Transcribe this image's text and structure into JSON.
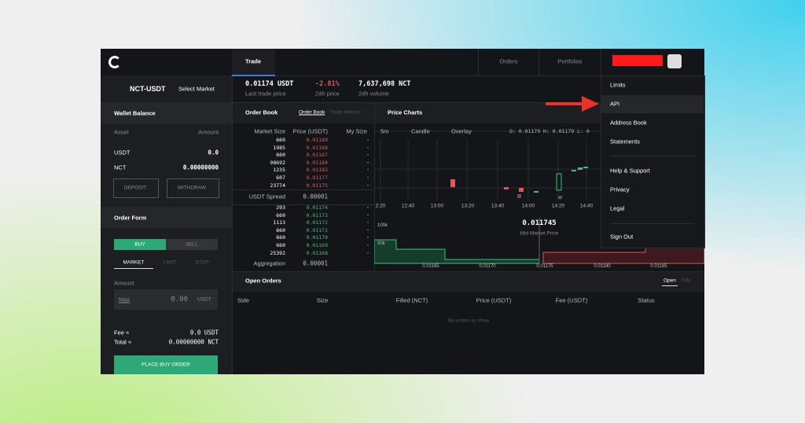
{
  "nav": {
    "tabs": [
      "Trade",
      "Orders",
      "Portfolios"
    ]
  },
  "user_menu": {
    "items": [
      "Limits",
      "API",
      "Address Book",
      "Statements",
      "Help & Support",
      "Privacy",
      "Legal",
      "Sign Out"
    ]
  },
  "market": {
    "pair": "NCT-USDT",
    "select": "Select Market"
  },
  "ticker": {
    "last_price": "0.01174 USDT",
    "last_price_label": "Last trade price",
    "change": "-2.81%",
    "change_label": "24h price",
    "volume": "7,637,698 NCT",
    "volume_label": "24h volume"
  },
  "wallet": {
    "title": "Wallet Balance",
    "headers": [
      "Asset",
      "Amount"
    ],
    "rows": [
      [
        "USDT",
        "0.0"
      ],
      [
        "NCT",
        "0.00000000"
      ]
    ],
    "buttons": [
      "DEPOSIT",
      "WITHDRAW"
    ]
  },
  "order_form": {
    "title": "Order Form",
    "sides": [
      "BUY",
      "SELL"
    ],
    "types": [
      "MARKET",
      "LIMIT",
      "STOP"
    ],
    "amount_label": "Amount",
    "max": "Max",
    "amount": "0.00",
    "unit": "USDT",
    "fee_label": "Fee ≈",
    "fee": "0.0 USDT",
    "total_label": "Total ≈",
    "total": "0.00000000 NCT",
    "submit": "PLACE BUY ORDER"
  },
  "order_book": {
    "title": "Order Book",
    "tabs": [
      "Order Book",
      "Trade History"
    ],
    "headers": [
      "Market Size",
      "Price (USDT)",
      "My Size"
    ],
    "asks": [
      [
        "660",
        "0.01189",
        "-"
      ],
      [
        "1985",
        "0.01188",
        "-"
      ],
      [
        "660",
        "0.01187",
        "-"
      ],
      [
        "98692",
        "0.01184",
        "-"
      ],
      [
        "1235",
        "0.01183",
        "-"
      ],
      [
        "607",
        "0.01177",
        "-"
      ],
      [
        "23774",
        "0.01175",
        "-"
      ]
    ],
    "spread_label": "USDT Spread",
    "spread": "0.00001",
    "bids": [
      [
        "293",
        "0.01174",
        "-"
      ],
      [
        "660",
        "0.01173",
        "-"
      ],
      [
        "1113",
        "0.01172",
        "-"
      ],
      [
        "660",
        "0.01171",
        "-"
      ],
      [
        "660",
        "0.01170",
        "-"
      ],
      [
        "660",
        "0.01169",
        "-"
      ],
      [
        "25392",
        "0.01168",
        "-"
      ]
    ],
    "aggregation_label": "Aggregation",
    "aggregation": "0.00001"
  },
  "price_chart": {
    "title": "Price Charts",
    "controls": [
      "5m",
      "Candle",
      "Overlay"
    ],
    "ohlc": "O: 0.01179  H: 0.01179  L: 0",
    "times": [
      "2:20",
      "12:40",
      "13:00",
      "13:20",
      "13:40",
      "14:00",
      "14:20",
      "14:40"
    ],
    "mid_price": "0.011745",
    "mid_price_label": "Mid Market Price",
    "depth_y": [
      "100k",
      "50k"
    ],
    "depth_x": [
      "0.01165",
      "0.01170",
      "0.01175",
      "0.01180",
      "0.01185"
    ]
  },
  "open_orders": {
    "title": "Open Orders",
    "tabs": [
      "Open",
      "Fills"
    ],
    "headers": [
      "Side",
      "Size",
      "Filled (NCT)",
      "Price (USDT)",
      "Fee (USDT)",
      "Status"
    ],
    "empty": "No orders to show"
  }
}
